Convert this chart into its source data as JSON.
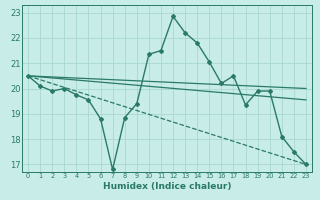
{
  "xlabel": "Humidex (Indice chaleur)",
  "ylabel": "",
  "x_ticks": [
    0,
    1,
    2,
    3,
    4,
    5,
    6,
    7,
    8,
    9,
    10,
    11,
    12,
    13,
    14,
    15,
    16,
    17,
    18,
    19,
    20,
    21,
    22,
    23
  ],
  "y_ticks": [
    17,
    18,
    19,
    20,
    21,
    22,
    23
  ],
  "xlim": [
    -0.5,
    23.5
  ],
  "ylim": [
    16.7,
    23.3
  ],
  "background_color": "#c8ece8",
  "line_color": "#2a7a68",
  "grid_color": "#a8d8d0",
  "series": [
    {
      "x": [
        0,
        1,
        2,
        3,
        4,
        5,
        6,
        7,
        8,
        9,
        10,
        11,
        12,
        13,
        14,
        15,
        16,
        17,
        18,
        19,
        20,
        21,
        22,
        23
      ],
      "y": [
        20.5,
        20.1,
        19.9,
        20.0,
        19.75,
        19.55,
        18.8,
        16.8,
        18.85,
        19.4,
        21.35,
        21.5,
        22.85,
        22.2,
        21.8,
        21.05,
        20.2,
        20.5,
        19.35,
        19.9,
        19.9,
        18.1,
        17.5,
        17.0
      ],
      "marker": "D",
      "markersize": 2.0,
      "linewidth": 1.0,
      "linestyle": "-"
    },
    {
      "x": [
        0,
        23
      ],
      "y": [
        20.5,
        20.0
      ],
      "marker": null,
      "markersize": 0,
      "linewidth": 0.9,
      "linestyle": "-"
    },
    {
      "x": [
        0,
        23
      ],
      "y": [
        20.5,
        19.55
      ],
      "marker": null,
      "markersize": 0,
      "linewidth": 0.9,
      "linestyle": "-"
    },
    {
      "x": [
        0,
        23
      ],
      "y": [
        20.5,
        17.0
      ],
      "marker": null,
      "markersize": 0,
      "linewidth": 0.9,
      "linestyle": "--"
    }
  ]
}
